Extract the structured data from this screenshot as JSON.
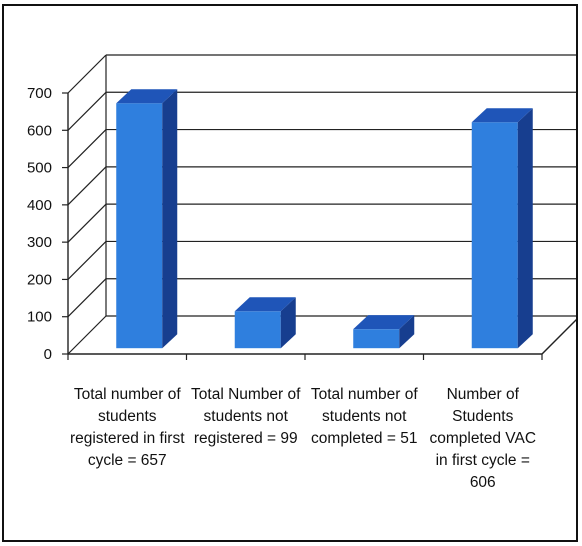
{
  "chart_data": {
    "type": "bar",
    "style": "3d-column",
    "categories": [
      "Total number of students registered in first cycle = 657",
      "Total Number of students not registered = 99",
      "Total number of students  not completed = 51",
      "Number of Students completed VAC in first cycle = 606"
    ],
    "values": [
      657,
      99,
      51,
      606
    ],
    "ylim": [
      0,
      700
    ],
    "yticks": [
      "0",
      "100",
      "200",
      "300",
      "400",
      "500",
      "600",
      "700"
    ],
    "grid": true,
    "legend": "none",
    "title": "",
    "xlabel": "",
    "ylabel": "",
    "colors": {
      "bar_front": "#2f7fde",
      "bar_top": "#1f55b8",
      "bar_side": "#173e8f",
      "grid": "#222222"
    }
  }
}
